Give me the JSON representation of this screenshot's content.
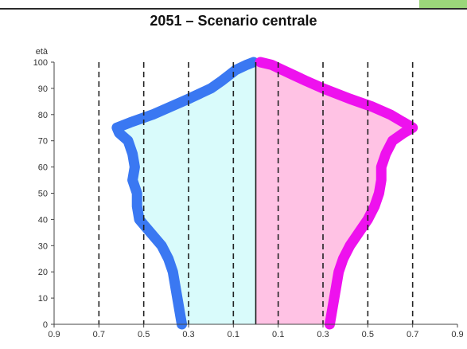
{
  "chart_data": {
    "type": "population-pyramid",
    "title": "2051 – Scenario centrale",
    "ylabel": "età",
    "y_ticks": [
      0,
      10,
      20,
      30,
      40,
      50,
      60,
      70,
      80,
      90,
      100
    ],
    "x_tick_labels": [
      "0.9",
      "0.7",
      "0.5",
      "0.3",
      "0.1",
      "0.1",
      "0.3",
      "0.5",
      "0.7",
      "0.9"
    ],
    "xlim": [
      -0.9,
      0.9
    ],
    "ylim": [
      0,
      100
    ],
    "grid_x": [
      -0.7,
      -0.5,
      -0.3,
      -0.1,
      0.1,
      0.3,
      0.5,
      0.7
    ],
    "series": [
      {
        "side": "left",
        "fill": "#d9fbfb",
        "edge": "#3a78f2",
        "ages": [
          0,
          5,
          10,
          15,
          20,
          25,
          30,
          35,
          40,
          45,
          50,
          55,
          60,
          65,
          70,
          73,
          75,
          77,
          80,
          83,
          86,
          90,
          93,
          95,
          97,
          99,
          100
        ],
        "values": [
          0.33,
          0.34,
          0.35,
          0.36,
          0.37,
          0.39,
          0.42,
          0.47,
          0.52,
          0.53,
          0.53,
          0.55,
          0.54,
          0.55,
          0.57,
          0.61,
          0.62,
          0.56,
          0.46,
          0.38,
          0.3,
          0.2,
          0.15,
          0.12,
          0.09,
          0.04,
          0.01
        ]
      },
      {
        "side": "right",
        "fill": "#ffc2e4",
        "edge": "#ee11ee",
        "ages": [
          0,
          5,
          10,
          15,
          20,
          25,
          30,
          35,
          40,
          45,
          50,
          55,
          60,
          65,
          70,
          73,
          75,
          77,
          80,
          83,
          86,
          90,
          93,
          95,
          97,
          99,
          100
        ],
        "values": [
          0.33,
          0.34,
          0.35,
          0.36,
          0.37,
          0.39,
          0.42,
          0.46,
          0.5,
          0.53,
          0.55,
          0.56,
          0.56,
          0.58,
          0.61,
          0.66,
          0.7,
          0.66,
          0.6,
          0.52,
          0.42,
          0.3,
          0.22,
          0.17,
          0.12,
          0.07,
          0.02
        ]
      }
    ]
  },
  "colors": {
    "center_line": "#1a1a1a",
    "grid": "#222222",
    "top_rule": "#2b2b2b",
    "corner_accent": "#9bd67a"
  }
}
